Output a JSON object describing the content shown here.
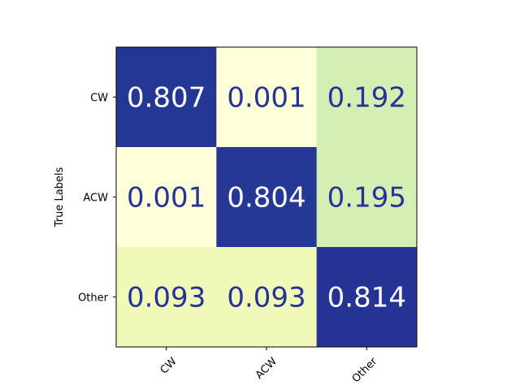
{
  "chart_data": {
    "type": "heatmap",
    "title": "",
    "xlabel": "",
    "ylabel": "True Labels",
    "x_categories": [
      "CW",
      "ACW",
      "Other"
    ],
    "y_categories": [
      "CW",
      "ACW",
      "Other"
    ],
    "values": [
      [
        0.807,
        0.001,
        0.192
      ],
      [
        0.001,
        0.804,
        0.195
      ],
      [
        0.093,
        0.093,
        0.814
      ]
    ],
    "cell_labels": [
      [
        "0.807",
        "0.001",
        "0.192"
      ],
      [
        "0.001",
        "0.804",
        "0.195"
      ],
      [
        "0.093",
        "0.093",
        "0.814"
      ]
    ],
    "colormap": "YlGnBu",
    "colorbar": false,
    "grid": false
  }
}
